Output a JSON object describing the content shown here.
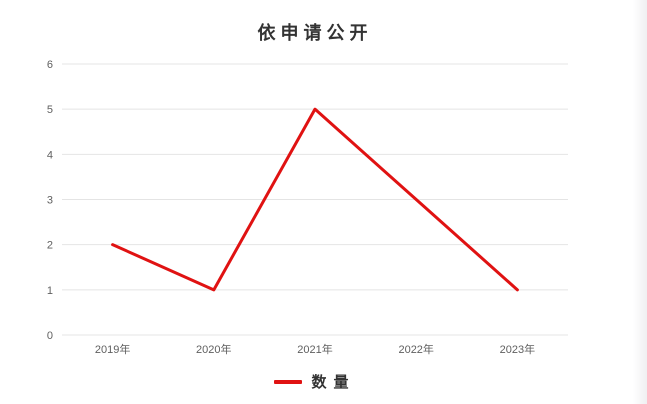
{
  "window": {
    "background": "#ffffff"
  },
  "chart_data": {
    "type": "line",
    "title": "依申请公开",
    "categories": [
      "2019年",
      "2020年",
      "2021年",
      "2022年",
      "2023年"
    ],
    "series": [
      {
        "name": "数量",
        "color": "#e01212",
        "values": [
          2,
          1,
          5,
          3,
          1
        ]
      }
    ],
    "xlabel": "",
    "ylabel": "",
    "ylim": [
      0,
      6
    ],
    "yticks": [
      0,
      1,
      2,
      3,
      4,
      5,
      6
    ],
    "grid": "horizontal-only",
    "legend_position": "bottom-center",
    "colors": {
      "grid": "#e4e4e4",
      "tick_label": "#5f5f5f",
      "title": "#333333"
    }
  }
}
